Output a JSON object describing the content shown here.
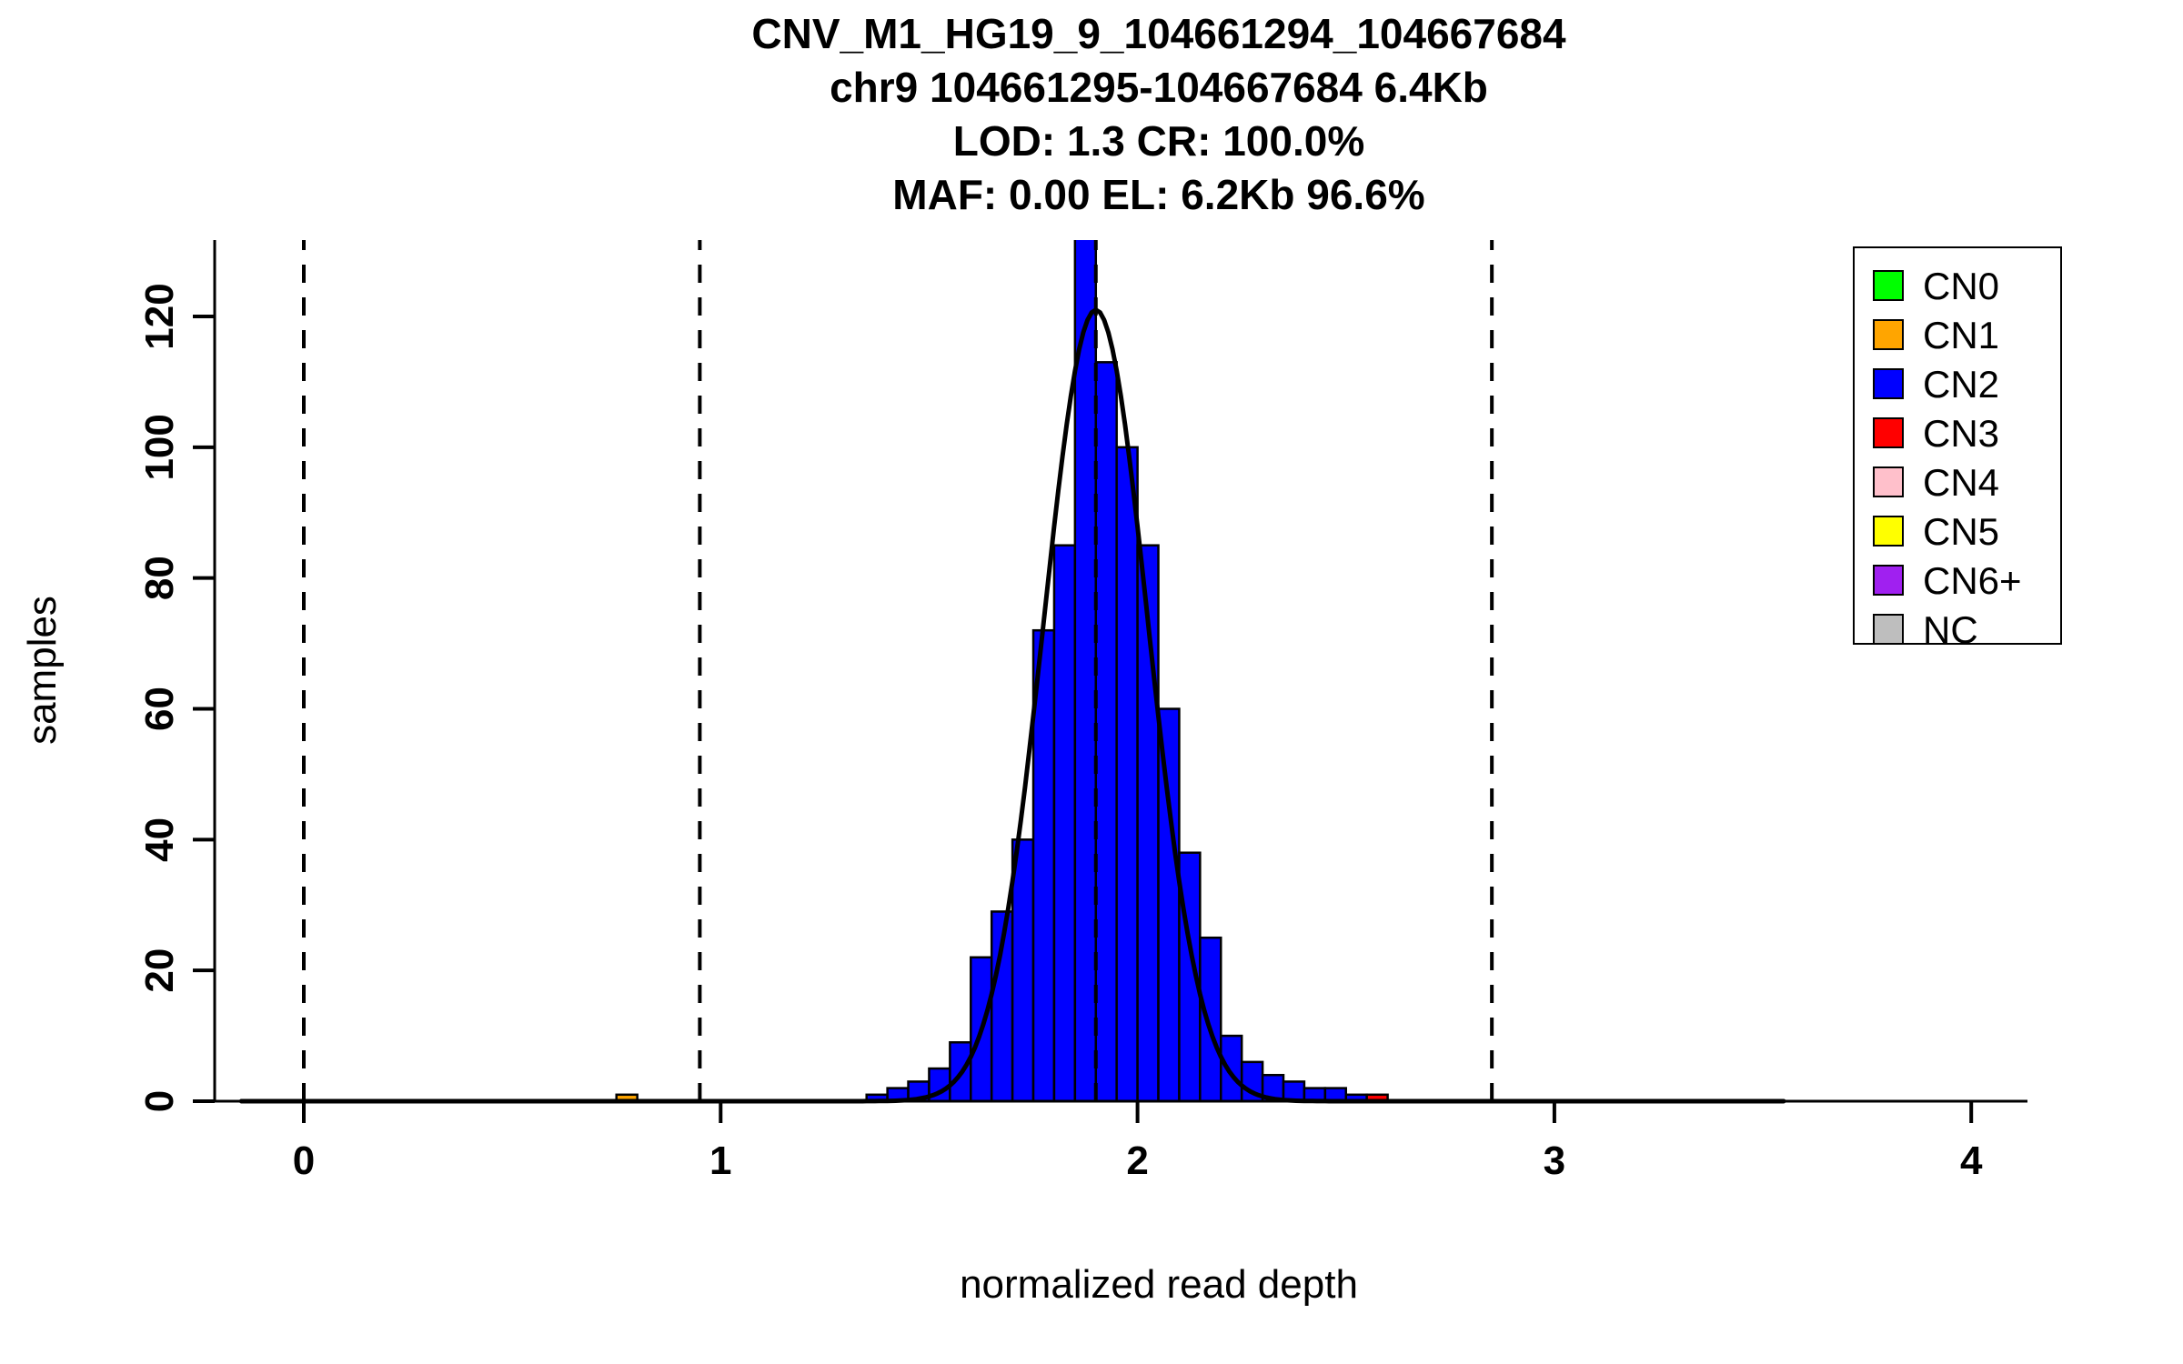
{
  "title": {
    "line1": "CNV_M1_HG19_9_104661294_104667684",
    "line2": "chr9 104661295-104667684 6.4Kb",
    "line3": "LOD: 1.3 CR: 100.0%",
    "line4": "MAF: 0.00 EL: 6.2Kb 96.6%"
  },
  "chart_data": {
    "type": "bar",
    "subtype": "histogram-with-density-fit",
    "title": "CNV_M1_HG19_9_104661294_104667684 / chr9 104661295-104667684 6.4Kb / LOD: 1.3 CR: 100.0% / MAF: 0.00 EL: 6.2Kb 96.6%",
    "xlabel": "normalized read depth",
    "ylabel": "samples",
    "xlim": [
      -0.21,
      4.14
    ],
    "ylim": [
      0,
      131.7
    ],
    "x_ticks": [
      0,
      1,
      2,
      3,
      4
    ],
    "y_ticks": [
      0,
      20,
      40,
      60,
      80,
      100,
      120
    ],
    "grid": false,
    "bin_width": 0.05,
    "bars": [
      [
        0.75,
        1,
        "CN1"
      ],
      [
        1.35,
        1,
        "CN2"
      ],
      [
        1.4,
        2,
        "CN2"
      ],
      [
        1.45,
        3,
        "CN2"
      ],
      [
        1.5,
        5,
        "CN2"
      ],
      [
        1.55,
        9,
        "CN2"
      ],
      [
        1.6,
        22,
        "CN2"
      ],
      [
        1.65,
        29,
        "CN2"
      ],
      [
        1.7,
        40,
        "CN2"
      ],
      [
        1.75,
        72,
        "CN2"
      ],
      [
        1.8,
        85,
        "CN2"
      ],
      [
        1.85,
        133,
        "CN2"
      ],
      [
        1.9,
        113,
        "CN2"
      ],
      [
        1.95,
        100,
        "CN2"
      ],
      [
        2.0,
        85,
        "CN2"
      ],
      [
        2.05,
        60,
        "CN2"
      ],
      [
        2.1,
        38,
        "CN2"
      ],
      [
        2.15,
        25,
        "CN2"
      ],
      [
        2.2,
        10,
        "CN2"
      ],
      [
        2.25,
        6,
        "CN2"
      ],
      [
        2.3,
        4,
        "CN2"
      ],
      [
        2.35,
        3,
        "CN2"
      ],
      [
        2.4,
        2,
        "CN2"
      ],
      [
        2.45,
        2,
        "CN2"
      ],
      [
        2.5,
        1,
        "CN2"
      ],
      [
        2.55,
        1,
        "CN3"
      ]
    ],
    "fit_curve": {
      "mean": 1.9,
      "sd": 0.125,
      "peak": 121,
      "x_range": [
        -0.15,
        3.55
      ]
    },
    "dashed_lines_x": [
      0,
      0.95,
      1.9,
      2.85
    ],
    "legend": {
      "position": "top-right",
      "entries": [
        {
          "label": "CN0",
          "color": "#00FF00"
        },
        {
          "label": "CN1",
          "color": "#FFA500"
        },
        {
          "label": "CN2",
          "color": "#0000FF"
        },
        {
          "label": "CN3",
          "color": "#FF0000"
        },
        {
          "label": "CN4",
          "color": "#FFC0CB"
        },
        {
          "label": "CN5",
          "color": "#FFFF00"
        },
        {
          "label": "CN6+",
          "color": "#A020F0"
        },
        {
          "label": "NC",
          "color": "#BEBEBE"
        }
      ]
    },
    "colors": {
      "bar_default": "#0000FF",
      "curve": "#000000",
      "axis": "#000000",
      "background": "#FFFFFF"
    }
  }
}
